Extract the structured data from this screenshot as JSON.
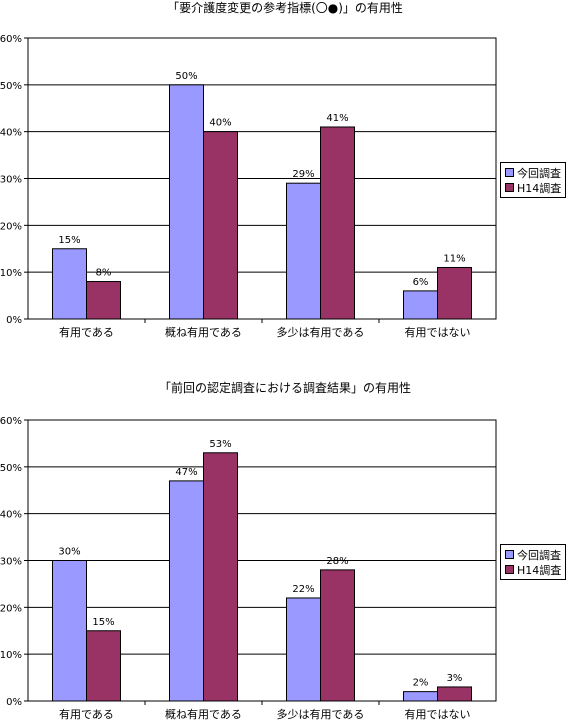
{
  "chart_data": [
    {
      "type": "bar",
      "title": "「要介護度変更の参考指標(〇●)」の有用性",
      "categories": [
        "有用である",
        "概ね有用である",
        "多少は有用である",
        "有用ではない"
      ],
      "series": [
        {
          "name": "今回調査",
          "color": "#9999ff",
          "values": [
            15,
            50,
            29,
            6
          ]
        },
        {
          "name": "H14調査",
          "color": "#993366",
          "values": [
            8,
            40,
            41,
            11
          ]
        }
      ],
      "ylim": [
        0,
        60
      ],
      "yticks": [
        "0%",
        "10%",
        "20%",
        "30%",
        "40%",
        "50%",
        "60%"
      ],
      "value_suffix": "%",
      "grid": true,
      "legend": "right"
    },
    {
      "type": "bar",
      "title": "「前回の認定調査における調査結果」の有用性",
      "categories": [
        "有用である",
        "概ね有用である",
        "多少は有用である",
        "有用ではない"
      ],
      "series": [
        {
          "name": "今回調査",
          "color": "#9999ff",
          "values": [
            30,
            47,
            22,
            2
          ]
        },
        {
          "name": "H14調査",
          "color": "#993366",
          "values": [
            15,
            53,
            28,
            3
          ]
        }
      ],
      "ylim": [
        0,
        60
      ],
      "yticks": [
        "0%",
        "10%",
        "20%",
        "30%",
        "40%",
        "50%",
        "60%"
      ],
      "value_suffix": "%",
      "grid": true,
      "legend": "right"
    }
  ]
}
